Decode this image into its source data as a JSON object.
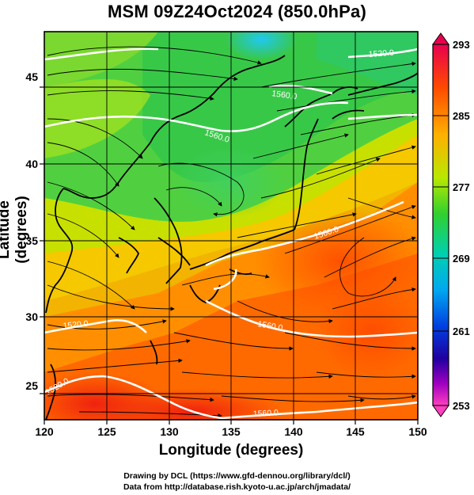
{
  "title": "MSM 09Z24Oct2024 (850.0hPa)",
  "xlabel": "Longitude (degrees)",
  "ylabel": "Latitude  (degrees)",
  "x_ticks": [
    "120",
    "125",
    "130",
    "135",
    "140",
    "145",
    "150"
  ],
  "y_ticks": [
    "25",
    "30",
    "35",
    "40",
    "45"
  ],
  "colorbar": {
    "ticks": [
      "293",
      "285",
      "277",
      "269",
      "261",
      "253"
    ],
    "colors": [
      "#e8004e",
      "#ff3a00",
      "#ff8a00",
      "#f0c000",
      "#a0e000",
      "#30d030",
      "#00c8a0",
      "#00a8f0",
      "#0050e0",
      "#2000a0",
      "#a000c0",
      "#ff40c0"
    ]
  },
  "contour_labels": [
    "1520.0",
    "1560.0",
    "1560.0",
    "1560.0",
    "1520.0",
    "1520.0",
    "1560.0",
    "1560.0"
  ],
  "credits": {
    "line1": "Drawing by DCL (https://www.gfd-dennou.org/library/dcl/)",
    "line2": "Data from http://database.rish.kyoto-u.ac.jp/arch/jmadata/"
  },
  "chart_data": {
    "type": "heatmap",
    "title": "MSM 09Z24Oct2024 (850.0hPa)",
    "xlabel": "Longitude (degrees)",
    "ylabel": "Latitude  (degrees)",
    "xlim": [
      120,
      150
    ],
    "ylim": [
      22.5,
      47.5
    ],
    "colorbar_range": [
      253,
      293
    ],
    "features": [
      "temperature shading",
      "geopotential height contours (white)",
      "streamlines",
      "coastlines",
      "grid"
    ]
  }
}
